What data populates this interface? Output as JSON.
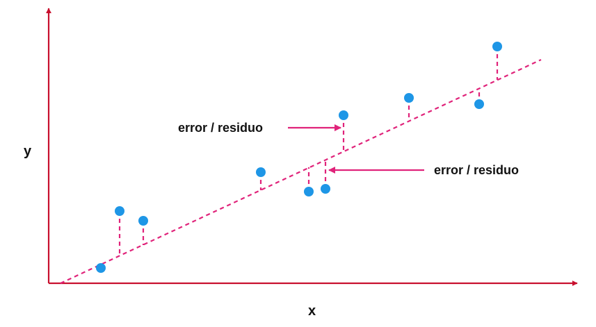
{
  "diagram": {
    "x_label": "x",
    "y_label": "y",
    "annotations": [
      {
        "text": "error / residuo",
        "arrow_points": "right"
      },
      {
        "text": "error / residuo",
        "arrow_points": "left"
      }
    ]
  },
  "colors": {
    "axis": "#c8102e",
    "regression_line": "#e0237a",
    "residual": "#e0237a",
    "annotation_arrow": "#e0237a",
    "point": "#1e96e6",
    "text": "#111111"
  }
}
